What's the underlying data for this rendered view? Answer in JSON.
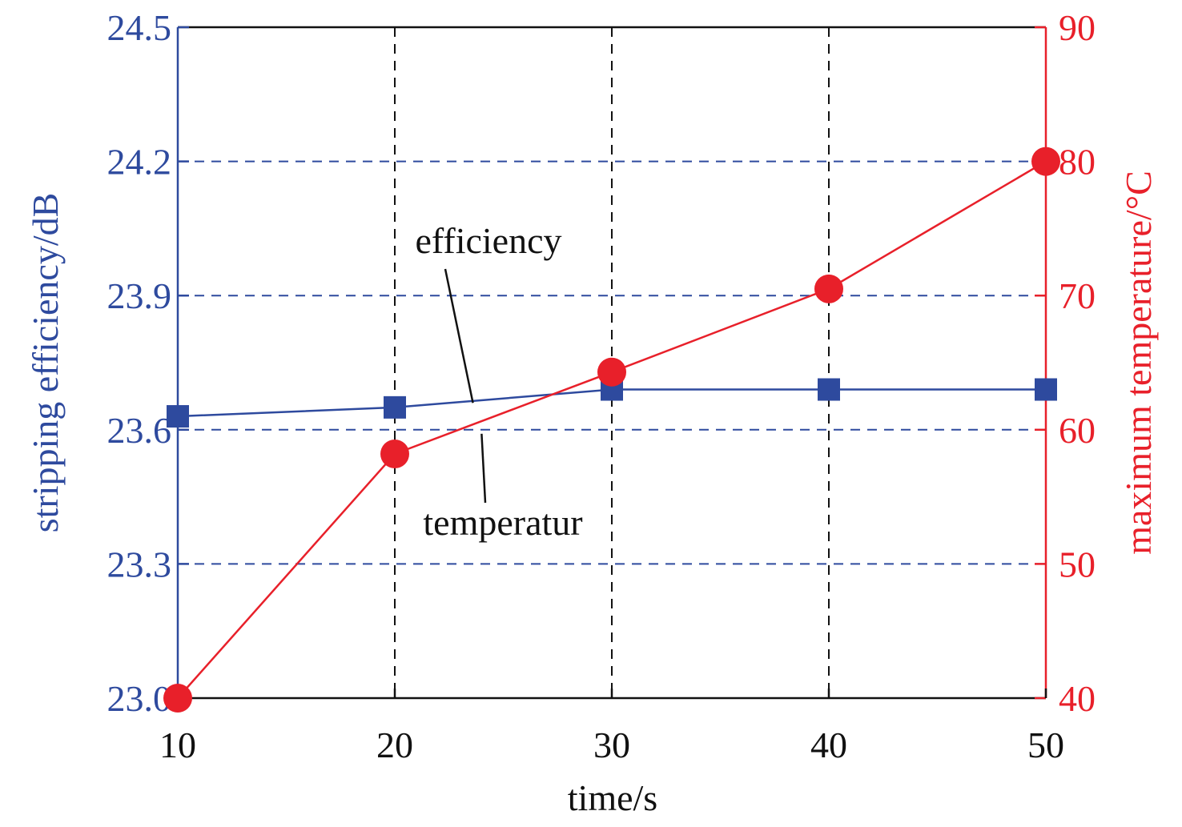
{
  "chart_data": {
    "type": "line",
    "x": [
      10,
      20,
      30,
      40,
      50
    ],
    "xlabel": "time/s",
    "xlim": [
      10,
      50
    ],
    "xticks": [
      "10",
      "20",
      "30",
      "40",
      "50"
    ],
    "left_axis": {
      "label": "stripping efficiency/dB",
      "ylim": [
        23.0,
        24.5
      ],
      "ticks": [
        "23.0",
        "23.3",
        "23.6",
        "23.9",
        "24.2",
        "24.5"
      ],
      "color": "#2e4a9e"
    },
    "right_axis": {
      "label": "maximum temperature/°C",
      "ylim": [
        40,
        90
      ],
      "ticks": [
        "40",
        "50",
        "60",
        "70",
        "80",
        "90"
      ],
      "color": "#e8202a"
    },
    "series": [
      {
        "name": "efficiency",
        "axis": "left",
        "marker": "square",
        "color": "#2e4a9e",
        "values": [
          23.63,
          23.65,
          23.69,
          23.69,
          23.69
        ]
      },
      {
        "name": "temperatur",
        "axis": "right",
        "marker": "circle",
        "color": "#e8202a",
        "values": [
          40,
          58.2,
          64.3,
          70.5,
          80
        ]
      }
    ],
    "grid": {
      "horizontal": "dashed",
      "vertical": "dashed"
    },
    "annotations": [
      {
        "text": "efficiency",
        "target_series": "efficiency",
        "x": 23.6,
        "y": 23.66
      },
      {
        "text": "temperatur",
        "target_series": "temperatur",
        "x": 24.0,
        "y": 59.7
      }
    ]
  }
}
